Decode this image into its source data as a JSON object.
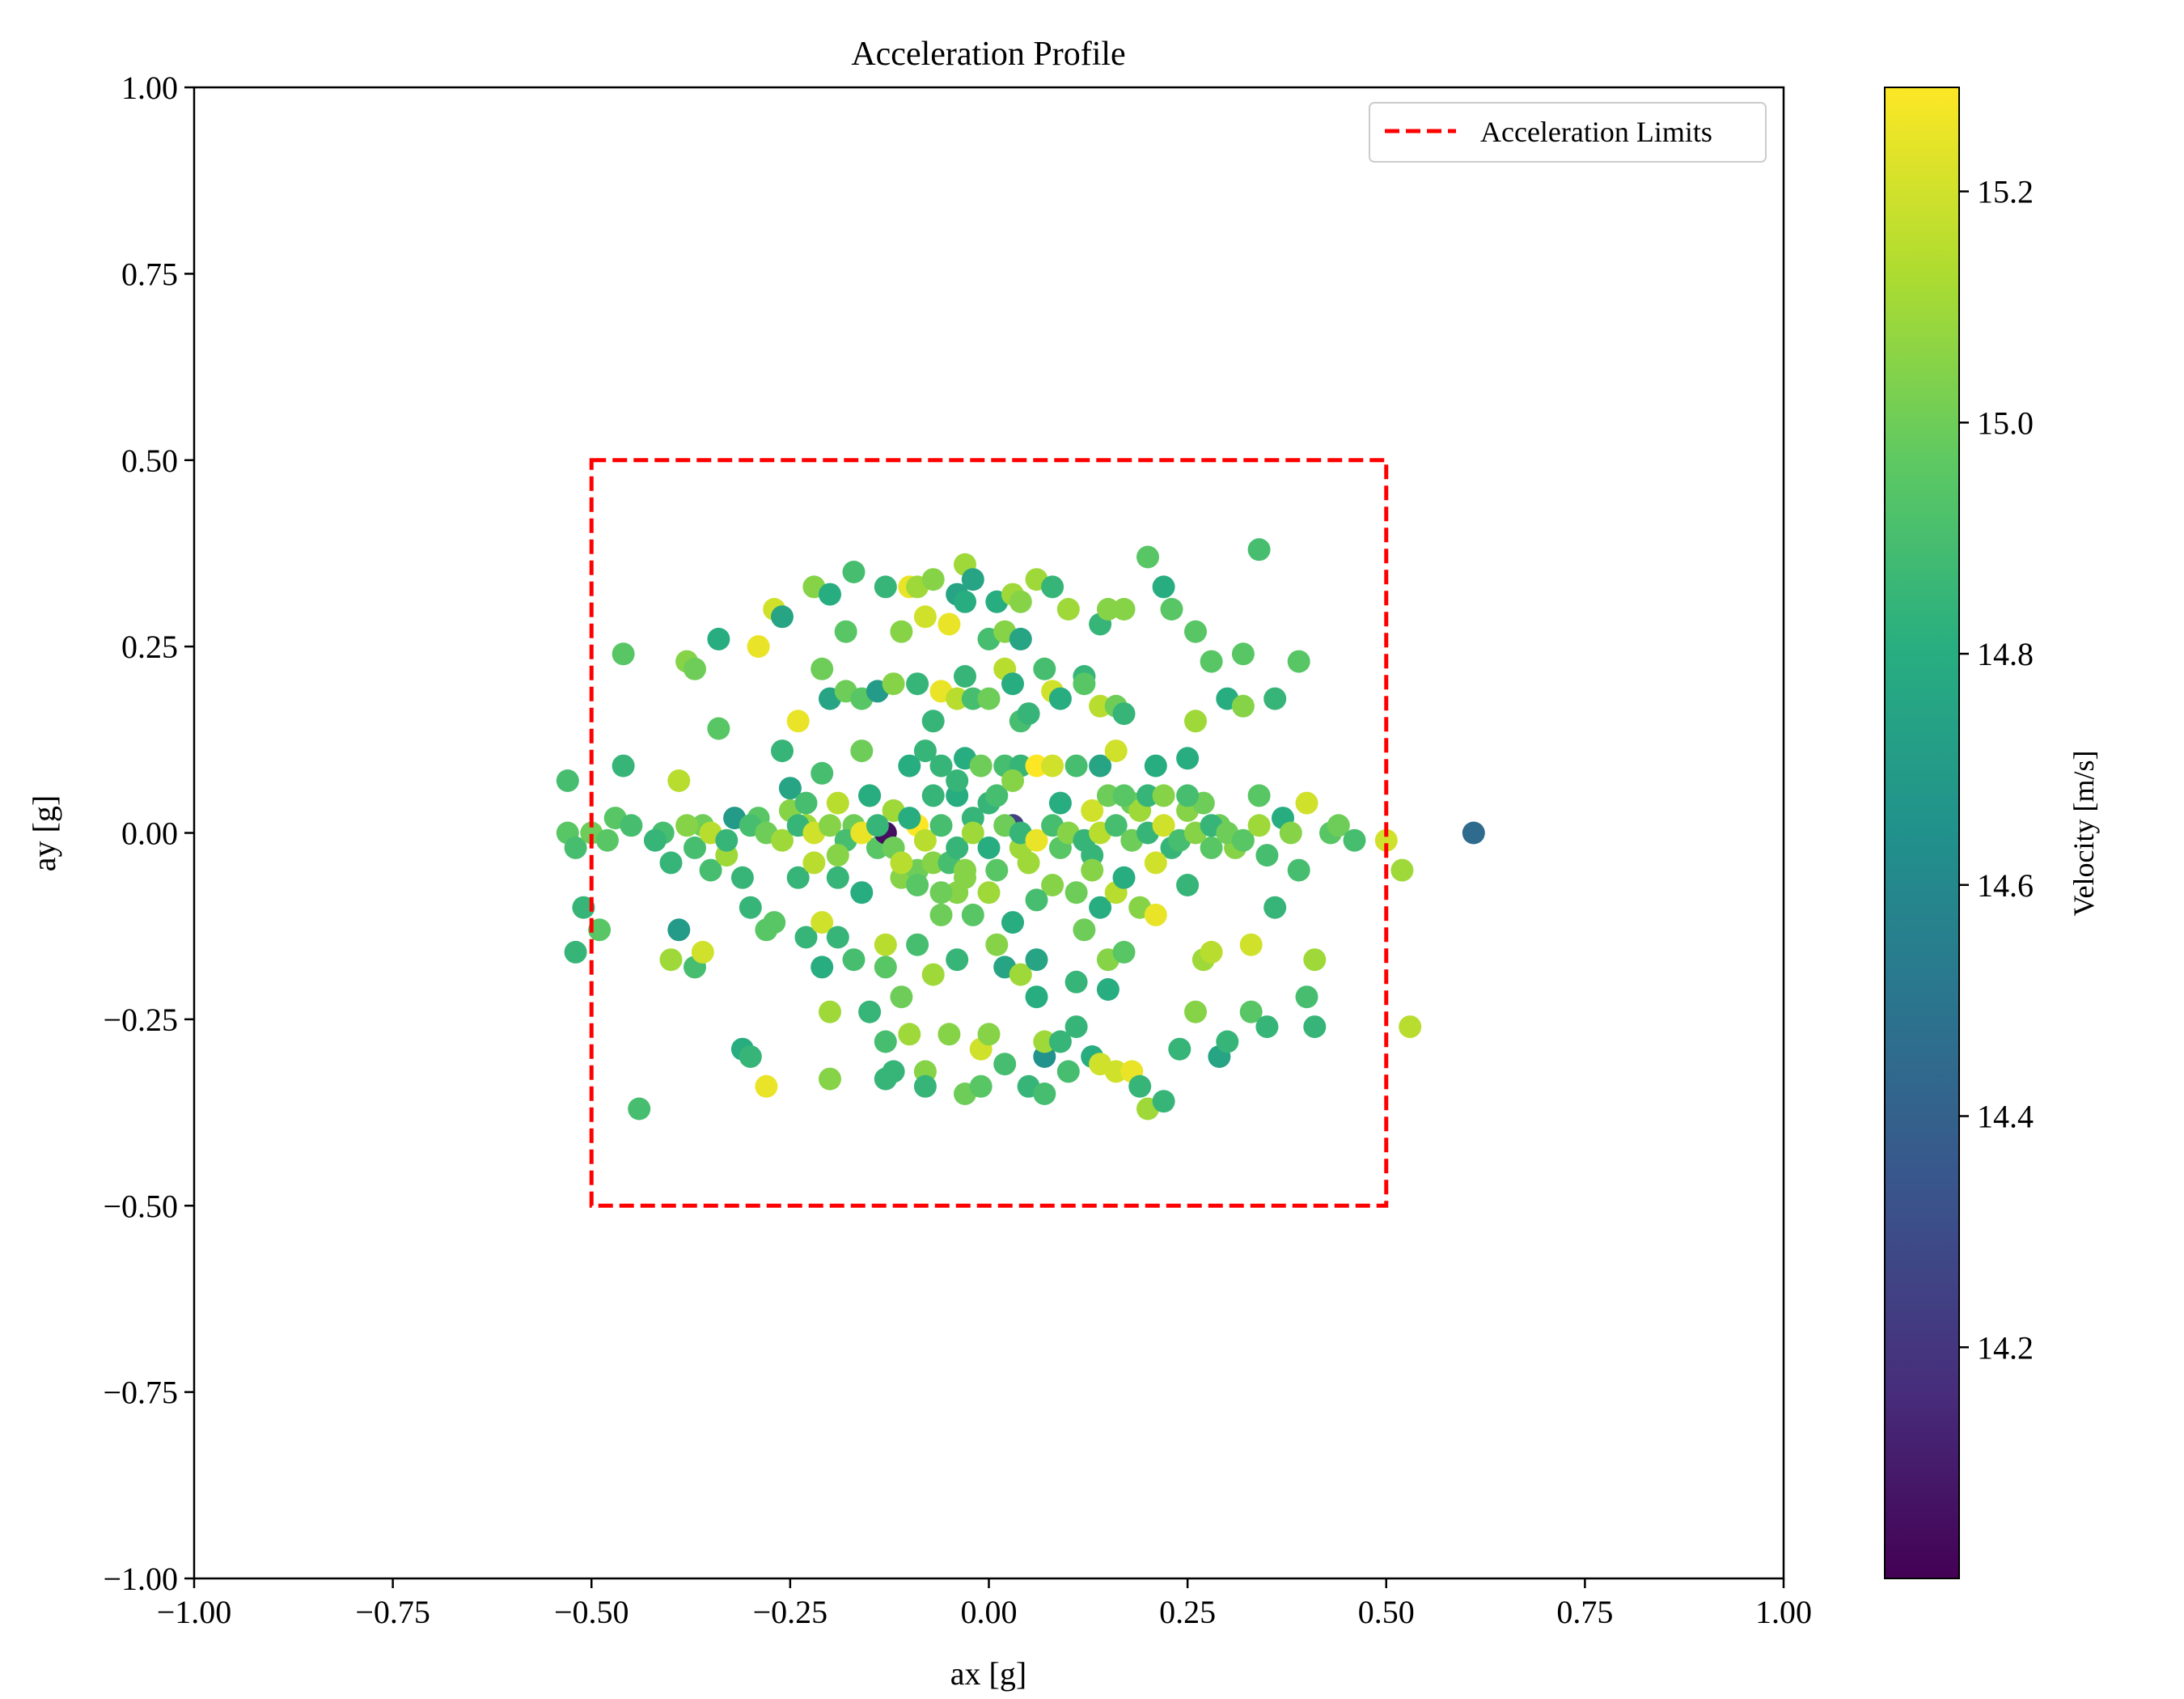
{
  "chart_data": {
    "type": "scatter",
    "title": "Acceleration Profile",
    "xlabel": "ax [g]",
    "ylabel": "ay [g]",
    "xlim": [
      -1.0,
      1.0
    ],
    "ylim": [
      -1.0,
      1.0
    ],
    "x_ticks": [
      "−1.00",
      "−0.75",
      "−0.50",
      "−0.25",
      "0.00",
      "0.25",
      "0.50",
      "0.75",
      "1.00"
    ],
    "y_ticks": [
      "1.00",
      "0.75",
      "0.50",
      "0.25",
      "0.00",
      "−0.25",
      "−0.50",
      "−0.75",
      "−1.00"
    ],
    "grid": false,
    "legend": {
      "placement": "top-right",
      "entries": [
        {
          "label": "Acceleration Limits",
          "style": "dashed",
          "color": "#ff0000"
        }
      ]
    },
    "limits_box": {
      "x": [
        -0.5,
        0.5
      ],
      "y": [
        -0.5,
        0.5
      ],
      "color": "#ff0000"
    },
    "colorbar": {
      "label": "Velocity [m/s]",
      "colormap": "viridis",
      "range": [
        14.0,
        15.29
      ],
      "ticks": [
        14.2,
        14.4,
        14.6,
        14.8,
        15.0,
        15.2
      ],
      "tick_labels": [
        "14.2",
        "14.4",
        "14.6",
        "14.8",
        "15.0",
        "15.2"
      ]
    },
    "points": [
      [
        -0.53,
        0.07,
        14.9
      ],
      [
        -0.53,
        0.0,
        14.95
      ],
      [
        -0.52,
        -0.02,
        14.9
      ],
      [
        -0.51,
        -0.1,
        14.85
      ],
      [
        -0.52,
        -0.16,
        14.85
      ],
      [
        -0.49,
        -0.13,
        14.95
      ],
      [
        -0.47,
        0.02,
        14.95
      ],
      [
        -0.46,
        0.24,
        14.95
      ],
      [
        -0.46,
        0.09,
        14.85
      ],
      [
        -0.44,
        -0.37,
        14.9
      ],
      [
        -0.41,
        0.0,
        14.9
      ],
      [
        -0.4,
        -0.04,
        14.85
      ],
      [
        -0.4,
        -0.17,
        15.1
      ],
      [
        -0.39,
        0.07,
        15.15
      ],
      [
        -0.39,
        -0.13,
        14.7
      ],
      [
        -0.38,
        0.23,
        15.05
      ],
      [
        -0.37,
        0.22,
        15.0
      ],
      [
        -0.37,
        -0.02,
        14.9
      ],
      [
        -0.37,
        -0.18,
        14.9
      ],
      [
        -0.36,
        0.01,
        15.0
      ],
      [
        -0.36,
        -0.16,
        15.2
      ],
      [
        -0.35,
        -0.05,
        14.9
      ],
      [
        -0.34,
        0.14,
        14.95
      ],
      [
        -0.34,
        0.26,
        14.8
      ],
      [
        -0.33,
        -0.03,
        15.1
      ],
      [
        -0.32,
        0.02,
        14.7
      ],
      [
        -0.31,
        -0.29,
        14.8
      ],
      [
        -0.3,
        -0.3,
        14.85
      ],
      [
        -0.31,
        -0.06,
        14.85
      ],
      [
        -0.3,
        -0.1,
        14.85
      ],
      [
        -0.29,
        0.25,
        15.25
      ],
      [
        -0.29,
        0.02,
        14.95
      ],
      [
        -0.28,
        -0.34,
        15.25
      ],
      [
        -0.28,
        -0.13,
        14.95
      ],
      [
        -0.27,
        -0.12,
        14.95
      ],
      [
        -0.27,
        0.3,
        15.2
      ],
      [
        -0.26,
        0.29,
        14.75
      ],
      [
        -0.26,
        0.11,
        14.85
      ],
      [
        -0.25,
        0.06,
        14.75
      ],
      [
        -0.25,
        0.03,
        15.05
      ],
      [
        -0.24,
        0.15,
        15.25
      ],
      [
        -0.24,
        -0.06,
        14.85
      ],
      [
        -0.23,
        0.01,
        15.1
      ],
      [
        -0.23,
        -0.14,
        14.85
      ],
      [
        -0.22,
        0.33,
        15.05
      ],
      [
        -0.22,
        -0.04,
        15.15
      ],
      [
        -0.21,
        0.08,
        14.9
      ],
      [
        -0.21,
        0.22,
        15.0
      ],
      [
        -0.21,
        -0.12,
        15.2
      ],
      [
        -0.21,
        -0.18,
        14.8
      ],
      [
        -0.2,
        0.18,
        14.75
      ],
      [
        -0.2,
        0.32,
        14.8
      ],
      [
        -0.2,
        -0.24,
        15.1
      ],
      [
        -0.2,
        -0.33,
        15.05
      ],
      [
        -0.19,
        0.04,
        15.15
      ],
      [
        -0.19,
        -0.06,
        14.85
      ],
      [
        -0.19,
        -0.14,
        14.85
      ],
      [
        -0.18,
        0.19,
        15.0
      ],
      [
        -0.18,
        0.27,
        14.95
      ],
      [
        -0.17,
        0.35,
        14.9
      ],
      [
        -0.17,
        0.01,
        15.0
      ],
      [
        -0.17,
        -0.17,
        14.9
      ],
      [
        -0.16,
        0.18,
        14.95
      ],
      [
        -0.16,
        0.11,
        15.0
      ],
      [
        -0.16,
        -0.08,
        14.8
      ],
      [
        -0.15,
        -0.24,
        14.85
      ],
      [
        -0.15,
        0.05,
        15.05
      ],
      [
        -0.14,
        0.19,
        14.7
      ],
      [
        -0.14,
        -0.02,
        14.95
      ],
      [
        -0.13,
        0.33,
        14.85
      ],
      [
        -0.13,
        -0.15,
        15.15
      ],
      [
        -0.13,
        -0.18,
        14.95
      ],
      [
        -0.13,
        -0.28,
        14.9
      ],
      [
        -0.13,
        -0.33,
        14.85
      ],
      [
        -0.13,
        0.0,
        14.05
      ],
      [
        -0.12,
        0.2,
        15.05
      ],
      [
        -0.12,
        -0.32,
        14.85
      ],
      [
        -0.12,
        0.03,
        15.1
      ],
      [
        -0.11,
        0.27,
        15.05
      ],
      [
        -0.11,
        -0.22,
        15.0
      ],
      [
        -0.11,
        -0.06,
        15.05
      ],
      [
        -0.1,
        0.33,
        15.25
      ],
      [
        -0.1,
        0.09,
        14.8
      ],
      [
        -0.1,
        -0.27,
        15.1
      ],
      [
        -0.09,
        0.33,
        15.1
      ],
      [
        -0.09,
        0.2,
        14.85
      ],
      [
        -0.09,
        0.01,
        15.3
      ],
      [
        -0.09,
        -0.15,
        14.9
      ],
      [
        -0.09,
        -0.05,
        15.0
      ],
      [
        -0.08,
        0.29,
        15.2
      ],
      [
        -0.08,
        0.11,
        14.85
      ],
      [
        -0.08,
        -0.32,
        15.05
      ],
      [
        -0.08,
        -0.34,
        14.85
      ],
      [
        -0.07,
        0.34,
        15.05
      ],
      [
        -0.07,
        0.15,
        14.85
      ],
      [
        -0.07,
        -0.19,
        15.1
      ],
      [
        -0.07,
        -0.04,
        15.05
      ],
      [
        -0.06,
        0.19,
        15.25
      ],
      [
        -0.06,
        0.09,
        14.85
      ],
      [
        -0.06,
        -0.11,
        15.0
      ],
      [
        -0.05,
        0.28,
        15.25
      ],
      [
        -0.05,
        -0.27,
        15.05
      ],
      [
        -0.05,
        -0.04,
        14.9
      ],
      [
        -0.04,
        0.32,
        14.75
      ],
      [
        -0.04,
        0.18,
        15.15
      ],
      [
        -0.04,
        0.05,
        14.8
      ],
      [
        -0.04,
        -0.17,
        14.85
      ],
      [
        -0.04,
        -0.08,
        15.05
      ],
      [
        -0.03,
        0.36,
        15.1
      ],
      [
        -0.03,
        0.31,
        14.8
      ],
      [
        -0.03,
        0.21,
        14.85
      ],
      [
        -0.03,
        0.1,
        14.8
      ],
      [
        -0.03,
        -0.35,
        15.0
      ],
      [
        -0.03,
        -0.06,
        15.05
      ],
      [
        -0.02,
        0.34,
        14.75
      ],
      [
        -0.02,
        0.18,
        14.9
      ],
      [
        -0.02,
        -0.11,
        14.95
      ],
      [
        -0.02,
        0.02,
        14.85
      ],
      [
        -0.01,
        0.09,
        15.0
      ],
      [
        -0.01,
        -0.34,
        14.95
      ],
      [
        -0.01,
        -0.29,
        15.2
      ],
      [
        0.0,
        0.26,
        14.9
      ],
      [
        0.0,
        0.18,
        15.0
      ],
      [
        0.0,
        -0.27,
        15.05
      ],
      [
        0.0,
        0.04,
        14.85
      ],
      [
        0.01,
        0.31,
        14.8
      ],
      [
        0.01,
        -0.05,
        14.95
      ],
      [
        0.01,
        -0.15,
        15.05
      ],
      [
        0.02,
        0.27,
        15.05
      ],
      [
        0.02,
        0.22,
        15.15
      ],
      [
        0.02,
        0.09,
        14.9
      ],
      [
        0.02,
        -0.31,
        14.9
      ],
      [
        0.02,
        -0.18,
        14.75
      ],
      [
        0.03,
        0.32,
        15.1
      ],
      [
        0.03,
        0.2,
        14.8
      ],
      [
        0.03,
        0.01,
        14.25
      ],
      [
        0.03,
        -0.12,
        14.8
      ],
      [
        0.04,
        0.31,
        15.05
      ],
      [
        0.04,
        0.15,
        14.9
      ],
      [
        0.04,
        0.09,
        14.85
      ],
      [
        0.04,
        0.26,
        14.75
      ],
      [
        0.04,
        -0.02,
        15.1
      ],
      [
        0.04,
        -0.19,
        15.1
      ],
      [
        0.05,
        -0.34,
        14.85
      ],
      [
        0.05,
        0.16,
        14.85
      ],
      [
        0.06,
        0.09,
        15.3
      ],
      [
        0.06,
        -0.17,
        14.75
      ],
      [
        0.06,
        -0.22,
        14.8
      ],
      [
        0.06,
        0.34,
        15.1
      ],
      [
        0.07,
        0.22,
        14.9
      ],
      [
        0.07,
        -0.3,
        14.65
      ],
      [
        0.07,
        -0.28,
        15.1
      ],
      [
        0.07,
        -0.35,
        14.9
      ],
      [
        0.08,
        0.33,
        14.85
      ],
      [
        0.08,
        0.19,
        15.2
      ],
      [
        0.08,
        0.09,
        15.2
      ],
      [
        0.08,
        -0.07,
        15.05
      ],
      [
        0.09,
        0.18,
        14.8
      ],
      [
        0.09,
        -0.28,
        14.85
      ],
      [
        0.09,
        -0.02,
        14.95
      ],
      [
        0.1,
        0.3,
        15.1
      ],
      [
        0.1,
        -0.32,
        14.9
      ],
      [
        0.11,
        0.09,
        14.9
      ],
      [
        0.11,
        -0.2,
        14.85
      ],
      [
        0.11,
        -0.26,
        14.85
      ],
      [
        0.12,
        0.21,
        14.85
      ],
      [
        0.12,
        0.2,
        14.95
      ],
      [
        0.12,
        -0.13,
        15.0
      ],
      [
        0.13,
        0.03,
        15.2
      ],
      [
        0.13,
        -0.03,
        14.85
      ],
      [
        0.13,
        -0.3,
        14.8
      ],
      [
        0.14,
        0.28,
        14.85
      ],
      [
        0.14,
        0.17,
        15.15
      ],
      [
        0.14,
        0.09,
        14.75
      ],
      [
        0.14,
        -0.1,
        14.8
      ],
      [
        0.14,
        -0.31,
        15.2
      ],
      [
        0.15,
        0.3,
        15.05
      ],
      [
        0.15,
        0.05,
        15.0
      ],
      [
        0.15,
        -0.21,
        14.8
      ],
      [
        0.15,
        -0.17,
        15.05
      ],
      [
        0.16,
        0.17,
        15.0
      ],
      [
        0.16,
        0.11,
        15.2
      ],
      [
        0.16,
        -0.08,
        15.15
      ],
      [
        0.16,
        -0.32,
        15.2
      ],
      [
        0.17,
        0.3,
        15.05
      ],
      [
        0.17,
        0.16,
        14.85
      ],
      [
        0.17,
        -0.06,
        14.8
      ],
      [
        0.17,
        -0.16,
        14.95
      ],
      [
        0.18,
        0.04,
        15.0
      ],
      [
        0.18,
        -0.32,
        15.25
      ],
      [
        0.19,
        0.03,
        15.1
      ],
      [
        0.19,
        -0.1,
        15.05
      ],
      [
        0.19,
        -0.34,
        14.85
      ],
      [
        0.2,
        0.37,
        14.95
      ],
      [
        0.2,
        0.05,
        14.85
      ],
      [
        0.2,
        -0.37,
        15.1
      ],
      [
        0.21,
        0.09,
        14.8
      ],
      [
        0.21,
        -0.11,
        15.25
      ],
      [
        0.22,
        0.33,
        14.8
      ],
      [
        0.22,
        0.05,
        15.05
      ],
      [
        0.22,
        -0.36,
        14.85
      ],
      [
        0.23,
        0.3,
        14.95
      ],
      [
        0.23,
        -0.02,
        14.85
      ],
      [
        0.24,
        -0.29,
        14.85
      ],
      [
        0.25,
        0.1,
        14.8
      ],
      [
        0.25,
        0.03,
        15.05
      ],
      [
        0.25,
        -0.07,
        14.85
      ],
      [
        0.26,
        0.27,
        14.95
      ],
      [
        0.26,
        0.15,
        15.1
      ],
      [
        0.26,
        -0.24,
        15.05
      ],
      [
        0.27,
        0.04,
        15.0
      ],
      [
        0.27,
        -0.17,
        15.1
      ],
      [
        0.28,
        0.23,
        14.95
      ],
      [
        0.28,
        -0.16,
        15.15
      ],
      [
        0.28,
        -0.02,
        14.95
      ],
      [
        0.29,
        0.01,
        15.0
      ],
      [
        0.29,
        -0.3,
        14.75
      ],
      [
        0.3,
        0.18,
        14.8
      ],
      [
        0.3,
        -0.28,
        14.85
      ],
      [
        0.31,
        -0.02,
        15.05
      ],
      [
        0.32,
        0.17,
        15.05
      ],
      [
        0.32,
        0.24,
        14.95
      ],
      [
        0.33,
        -0.15,
        15.2
      ],
      [
        0.33,
        -0.24,
        14.95
      ],
      [
        0.34,
        0.38,
        14.9
      ],
      [
        0.34,
        0.05,
        14.95
      ],
      [
        0.35,
        -0.26,
        14.85
      ],
      [
        0.35,
        -0.03,
        14.9
      ],
      [
        0.36,
        0.18,
        14.85
      ],
      [
        0.36,
        -0.1,
        14.85
      ],
      [
        0.37,
        0.02,
        14.8
      ],
      [
        0.38,
        0.0,
        15.05
      ],
      [
        0.39,
        0.23,
        14.95
      ],
      [
        0.39,
        -0.05,
        14.9
      ],
      [
        0.4,
        -0.22,
        14.9
      ],
      [
        0.4,
        0.04,
        15.2
      ],
      [
        0.41,
        -0.17,
        15.1
      ],
      [
        0.41,
        -0.26,
        14.85
      ],
      [
        0.43,
        0.0,
        14.95
      ],
      [
        0.44,
        0.01,
        15.0
      ],
      [
        0.46,
        -0.01,
        14.9
      ],
      [
        0.5,
        -0.01,
        15.2
      ],
      [
        0.52,
        -0.05,
        15.1
      ],
      [
        0.53,
        -0.26,
        15.15
      ],
      [
        0.61,
        0.0,
        14.45
      ],
      [
        -0.5,
        0.0,
        15.0
      ],
      [
        -0.48,
        -0.01,
        14.95
      ],
      [
        -0.45,
        0.01,
        14.9
      ],
      [
        -0.42,
        -0.01,
        14.85
      ],
      [
        -0.38,
        0.01,
        15.05
      ],
      [
        -0.35,
        0.0,
        15.15
      ],
      [
        -0.33,
        -0.01,
        14.85
      ],
      [
        -0.3,
        0.01,
        14.9
      ],
      [
        -0.28,
        0.0,
        15.0
      ],
      [
        -0.26,
        -0.01,
        15.1
      ],
      [
        -0.24,
        0.01,
        14.85
      ],
      [
        -0.22,
        0.0,
        15.2
      ],
      [
        -0.2,
        0.01,
        15.05
      ],
      [
        -0.18,
        -0.01,
        14.9
      ],
      [
        -0.16,
        0.0,
        15.25
      ],
      [
        -0.14,
        0.01,
        14.85
      ],
      [
        -0.12,
        -0.02,
        15.0
      ],
      [
        -0.1,
        0.02,
        14.8
      ],
      [
        -0.08,
        -0.01,
        15.15
      ],
      [
        -0.06,
        0.01,
        14.9
      ],
      [
        -0.04,
        -0.02,
        14.85
      ],
      [
        -0.02,
        0.0,
        15.1
      ],
      [
        0.0,
        -0.02,
        14.8
      ],
      [
        0.02,
        0.01,
        15.0
      ],
      [
        0.04,
        0.0,
        14.85
      ],
      [
        0.06,
        -0.01,
        15.25
      ],
      [
        0.08,
        0.01,
        14.9
      ],
      [
        0.1,
        0.0,
        15.05
      ],
      [
        0.12,
        -0.01,
        14.85
      ],
      [
        0.14,
        0.0,
        15.15
      ],
      [
        0.16,
        0.01,
        14.9
      ],
      [
        0.18,
        -0.01,
        15.0
      ],
      [
        0.2,
        0.0,
        14.85
      ],
      [
        0.22,
        0.01,
        15.2
      ],
      [
        0.24,
        -0.01,
        14.9
      ],
      [
        0.26,
        0.0,
        15.05
      ],
      [
        0.28,
        0.01,
        14.85
      ],
      [
        0.3,
        0.0,
        15.0
      ],
      [
        0.32,
        -0.01,
        14.95
      ],
      [
        0.34,
        0.01,
        15.1
      ],
      [
        -0.23,
        0.04,
        14.9
      ],
      [
        -0.19,
        -0.03,
        15.05
      ],
      [
        -0.15,
        0.05,
        14.8
      ],
      [
        -0.11,
        -0.04,
        15.15
      ],
      [
        -0.07,
        0.05,
        14.85
      ],
      [
        -0.03,
        -0.05,
        15.05
      ],
      [
        0.01,
        0.05,
        14.9
      ],
      [
        0.05,
        -0.04,
        15.1
      ],
      [
        0.09,
        0.04,
        14.8
      ],
      [
        0.13,
        -0.05,
        15.05
      ],
      [
        0.17,
        0.05,
        14.95
      ],
      [
        0.21,
        -0.04,
        15.2
      ],
      [
        0.25,
        0.05,
        14.9
      ],
      [
        -0.06,
        -0.08,
        15.0
      ],
      [
        0.0,
        -0.08,
        15.1
      ],
      [
        0.06,
        -0.09,
        14.9
      ],
      [
        -0.04,
        0.07,
        14.85
      ],
      [
        0.03,
        0.07,
        15.05
      ],
      [
        -0.09,
        -0.07,
        14.95
      ],
      [
        0.11,
        -0.08,
        15.0
      ]
    ]
  }
}
